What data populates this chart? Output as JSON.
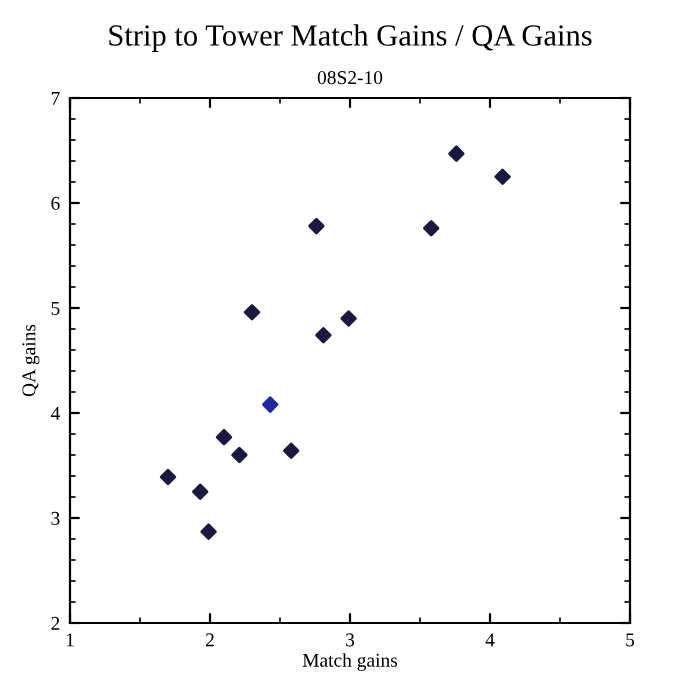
{
  "chart_data": {
    "type": "scatter",
    "title": "Strip to Tower Match Gains / QA Gains",
    "subtitle": "08S2-10",
    "xlabel": "Match gains",
    "ylabel": "QA gains",
    "series": [
      {
        "color": "#1a1a40",
        "x": [
          1.7,
          1.93,
          1.99,
          2.1,
          2.21,
          2.3,
          2.58,
          2.76,
          2.81,
          2.99,
          3.58,
          3.76,
          4.09
        ],
        "values": [
          3.39,
          3.25,
          2.87,
          3.77,
          3.6,
          4.96,
          3.64,
          5.78,
          4.74,
          4.9,
          5.76,
          6.47,
          6.25
        ]
      },
      {
        "color": "#1f2a9e",
        "x": [
          2.43
        ],
        "values": [
          4.08
        ]
      }
    ],
    "marker": "diamond",
    "xlim": [
      1,
      5
    ],
    "ylim": [
      2,
      7
    ],
    "xticks": [
      1,
      2,
      3,
      4,
      5
    ],
    "yticks": [
      2,
      3,
      4,
      5,
      6,
      7
    ],
    "grid": false,
    "legend": false
  }
}
